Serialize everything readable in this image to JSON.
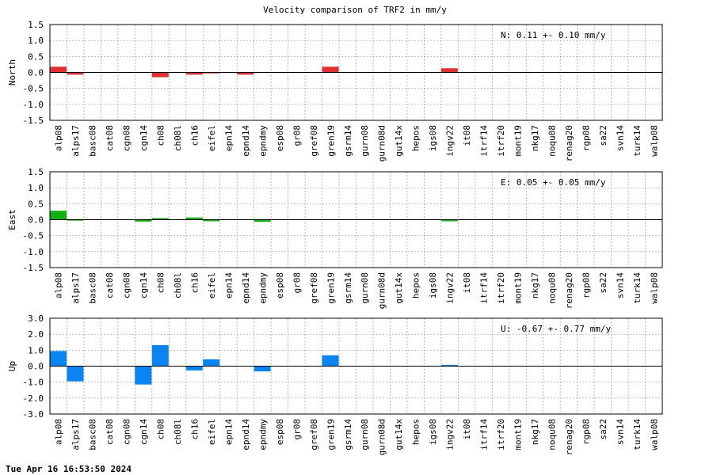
{
  "timestamp": "Tue Apr 16 16:53:50 2024",
  "chart_data": {
    "type": "bar",
    "title": "Velocity comparison of TRF2 in mm/y",
    "categories": [
      "alp08",
      "alps17",
      "basc08",
      "cat08",
      "cgn08",
      "cgn14",
      "ch08",
      "ch08l",
      "ch16",
      "eifel",
      "epn14",
      "epnd14",
      "epndmy",
      "esp08",
      "gr08",
      "gref08",
      "gren19",
      "gsrm14",
      "gurn08",
      "gurn08d",
      "gut14x",
      "hepos",
      "igs08",
      "ingv22",
      "it08",
      "itrf14",
      "itrf20",
      "mont19",
      "nkg17",
      "noqu08",
      "renag20",
      "rgp08",
      "sa22",
      "svn14",
      "turk14",
      "walp08"
    ],
    "panels": [
      {
        "ylabel": "North",
        "color": "#e03030",
        "ylim": [
          -1.5,
          1.5
        ],
        "yticks": [
          "1.5",
          "1.0",
          "0.5",
          "0.0",
          "-0.5",
          "-1.0",
          "-1.5"
        ],
        "annotation": "N:   0.11 +-  0.10 mm/y",
        "values": [
          0.18,
          -0.07,
          0,
          0,
          0,
          0,
          -0.15,
          0,
          -0.07,
          -0.03,
          0,
          -0.07,
          0,
          0,
          0,
          0,
          0.18,
          0,
          0,
          0,
          0,
          0,
          0,
          0.13,
          0,
          0,
          0,
          0,
          0,
          0,
          0,
          0,
          0,
          0,
          0,
          0
        ]
      },
      {
        "ylabel": "East",
        "color": "#10b010",
        "ylim": [
          -1.5,
          1.5
        ],
        "yticks": [
          "1.5",
          "1.0",
          "0.5",
          "0.0",
          "-0.5",
          "-1.0",
          "-1.5"
        ],
        "annotation": "E:   0.05 +-  0.05 mm/y",
        "values": [
          0.28,
          -0.03,
          0,
          0,
          0,
          -0.06,
          0.05,
          0,
          0.07,
          -0.05,
          0,
          0,
          -0.07,
          0,
          0,
          0,
          0,
          0,
          0,
          0,
          0,
          0,
          0,
          -0.05,
          0,
          0,
          0,
          0,
          0,
          0,
          0,
          0,
          0,
          0,
          0,
          0
        ]
      },
      {
        "ylabel": "Up",
        "color": "#0a84f0",
        "ylim": [
          -3.0,
          3.0
        ],
        "yticks": [
          "3.0",
          "2.0",
          "1.0",
          "0.0",
          "-1.0",
          "-2.0",
          "-3.0"
        ],
        "annotation": "U:  -0.67 +-  0.77 mm/y",
        "values": [
          0.95,
          -0.95,
          0,
          0,
          0,
          -1.15,
          1.32,
          0,
          -0.27,
          0.43,
          0,
          0,
          -0.33,
          0,
          0,
          0,
          0.68,
          0,
          0,
          0,
          0,
          0,
          0,
          0.08,
          0,
          0,
          0,
          0,
          0,
          0,
          0,
          0,
          0,
          0,
          0,
          0
        ]
      }
    ]
  }
}
